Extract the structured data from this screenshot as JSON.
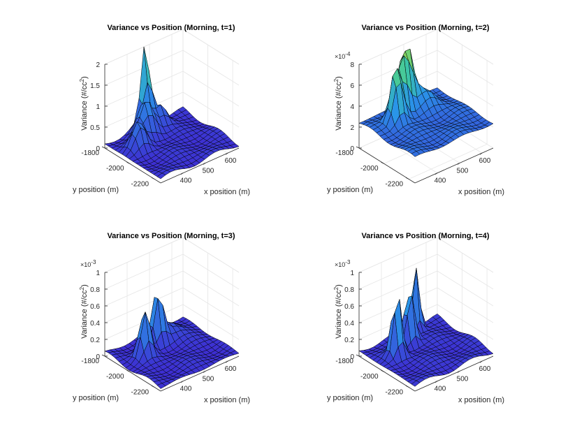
{
  "chart_data": [
    {
      "type": "surface",
      "title": "Variance vs Position (Morning, t=1)",
      "xlabel": "x position (m)",
      "ylabel": "y position (m)",
      "zlabel": "Variance (#/cc",
      "zlabel_sup": "2",
      "zlabel_close": ")",
      "exponent_base": "",
      "exponent_power": "",
      "xlim": [
        300,
        650
      ],
      "ylim": [
        -2250,
        -1800
      ],
      "zlim": [
        0,
        2
      ],
      "xticks": [
        "400",
        "500",
        "600"
      ],
      "yticks": [
        "-1800",
        "-2000",
        "-2200"
      ],
      "zticks": [
        "0",
        "0.5",
        "1",
        "1.5",
        "2"
      ],
      "peaks": [
        {
          "x": 480,
          "y": -1800,
          "z": 1.9,
          "spread": 0.35
        },
        {
          "x": 440,
          "y": -1880,
          "z": 0.9,
          "spread": 0.6
        },
        {
          "x": 370,
          "y": -1950,
          "z": 0.6,
          "spread": 0.5
        },
        {
          "x": 520,
          "y": -1850,
          "z": 0.5,
          "spread": 0.5
        }
      ],
      "base": 0.05
    },
    {
      "type": "surface",
      "title": "Variance vs Position (Morning, t=2)",
      "xlabel": "x position (m)",
      "ylabel": "y position (m)",
      "zlabel": "Variance (#/cc",
      "zlabel_sup": "2",
      "zlabel_close": ")",
      "exponent_base": "×10",
      "exponent_power": "-4",
      "xlim": [
        300,
        650
      ],
      "ylim": [
        -2250,
        -1800
      ],
      "zlim": [
        0,
        8
      ],
      "xticks": [
        "400",
        "500",
        "600"
      ],
      "yticks": [
        "-1800",
        "-2000",
        "-2200"
      ],
      "zticks": [
        "0",
        "2",
        "4",
        "6",
        "8"
      ],
      "peaks": [
        {
          "x": 400,
          "y": -1920,
          "z": 5.5,
          "spread": 0.45
        },
        {
          "x": 450,
          "y": -1880,
          "z": 6.0,
          "spread": 0.4
        },
        {
          "x": 490,
          "y": -1850,
          "z": 5.8,
          "spread": 0.4
        },
        {
          "x": 540,
          "y": -1900,
          "z": 1.5,
          "spread": 0.8
        }
      ],
      "base": 0.3
    },
    {
      "type": "surface",
      "title": "Variance vs Position (Morning, t=3)",
      "xlabel": "x position (m)",
      "ylabel": "y position (m)",
      "zlabel": "Variance (#/cc",
      "zlabel_sup": "2",
      "zlabel_close": ")",
      "exponent_base": "×10",
      "exponent_power": "-3",
      "xlim": [
        300,
        650
      ],
      "ylim": [
        -2250,
        -1800
      ],
      "zlim": [
        0,
        1
      ],
      "xticks": [
        "400",
        "500",
        "600"
      ],
      "yticks": [
        "-1800",
        "-2000",
        "-2200"
      ],
      "zticks": [
        "0",
        "0.2",
        "0.4",
        "0.6",
        "0.8",
        "1"
      ],
      "peaks": [
        {
          "x": 390,
          "y": -1960,
          "z": 0.55,
          "spread": 0.4
        },
        {
          "x": 480,
          "y": -1900,
          "z": 0.58,
          "spread": 0.4
        },
        {
          "x": 540,
          "y": -1880,
          "z": 0.15,
          "spread": 0.9
        }
      ],
      "base": 0.04
    },
    {
      "type": "surface",
      "title": "Variance vs Position (Morning, t=4)",
      "xlabel": "x position (m)",
      "ylabel": "y position (m)",
      "zlabel": "Variance (#/cc",
      "zlabel_sup": "2",
      "zlabel_close": ")",
      "exponent_base": "×10",
      "exponent_power": "-3",
      "xlim": [
        300,
        650
      ],
      "ylim": [
        -2250,
        -1800
      ],
      "zlim": [
        0,
        1
      ],
      "xticks": [
        "400",
        "500",
        "600"
      ],
      "yticks": [
        "-1800",
        "-2000",
        "-2200"
      ],
      "zticks": [
        "0",
        "0.2",
        "0.4",
        "0.6",
        "0.8",
        "1"
      ],
      "peaks": [
        {
          "x": 380,
          "y": -1960,
          "z": 0.78,
          "spread": 0.35
        },
        {
          "x": 470,
          "y": -1900,
          "z": 0.7,
          "spread": 0.35
        },
        {
          "x": 540,
          "y": -1820,
          "z": 0.82,
          "spread": 0.3
        }
      ],
      "base": 0.06
    }
  ],
  "colors": {
    "surface_low": "#3e2bd1",
    "surface_mid": "#2a95e8",
    "surface_high": "#3cc8a3",
    "surface_top": "#9ad84a",
    "edge": "#000000",
    "grid": "#e6e6e6"
  }
}
